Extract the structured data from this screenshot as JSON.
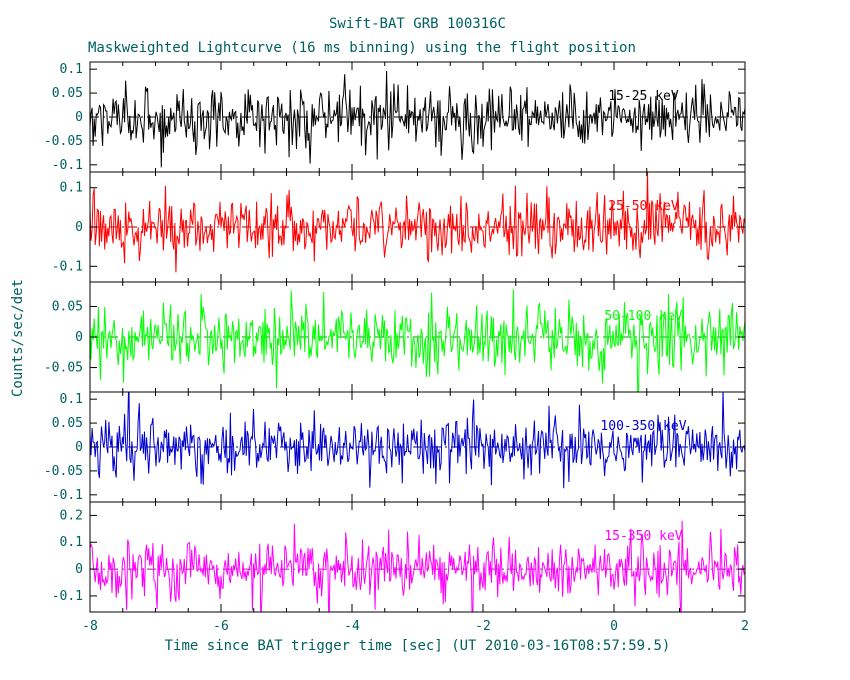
{
  "chart_data": {
    "type": "line",
    "title": "Swift-BAT GRB 100316C",
    "subtitle": "Maskweighted Lightcurve (16 ms binning) using the flight position",
    "xlabel": "Time since BAT trigger time [sec] (UT 2010-03-16T08:57:59.5)",
    "ylabel": "Counts/sec/det",
    "xlim": [
      -8,
      2
    ],
    "xticks": [
      -8,
      -6,
      -4,
      -2,
      0,
      2
    ],
    "x_minor_step": 0.5,
    "bin_seconds": 0.016,
    "grid": false,
    "legend_position": "inside-right-per-panel",
    "background": "#ffffff",
    "axis_color": "#000000",
    "text_color": "#005f5f",
    "zero_line_style": "dash-dot",
    "series_description": "Noise-dominated maskweighted lightcurve in five energy bands; values fluctuate about zero with no visible burst structure; dash-dot reference line at 0 in each panel",
    "panels": [
      {
        "label": "15-25 keV",
        "color": "#000000",
        "zero_line_color": "#000000",
        "ylim": [
          -0.115,
          0.115
        ],
        "yticks": [
          0.1,
          0.05,
          0,
          -0.05,
          -0.1
        ],
        "noise_sigma": 0.031
      },
      {
        "label": "25-50 keV",
        "color": "#ff0000",
        "zero_line_color": "#b00000",
        "ylim": [
          -0.14,
          0.14
        ],
        "yticks": [
          0.1,
          0,
          -0.1
        ],
        "noise_sigma": 0.038
      },
      {
        "label": "50-100 keV",
        "color": "#00ff00",
        "zero_line_color": "#009900",
        "ylim": [
          -0.09,
          0.09
        ],
        "yticks": [
          0.05,
          0,
          -0.05
        ],
        "noise_sigma": 0.026
      },
      {
        "label": "100-350 keV",
        "color": "#0000cc",
        "zero_line_color": "#000088",
        "ylim": [
          -0.115,
          0.115
        ],
        "yticks": [
          0.1,
          0.05,
          0,
          -0.05,
          -0.1
        ],
        "noise_sigma": 0.03
      },
      {
        "label": "15-350 keV",
        "color": "#ff00ff",
        "zero_line_color": "#bb00bb",
        "ylim": [
          -0.16,
          0.25
        ],
        "yticks": [
          0.2,
          0.1,
          0,
          -0.1
        ],
        "noise_sigma": 0.052
      }
    ]
  }
}
